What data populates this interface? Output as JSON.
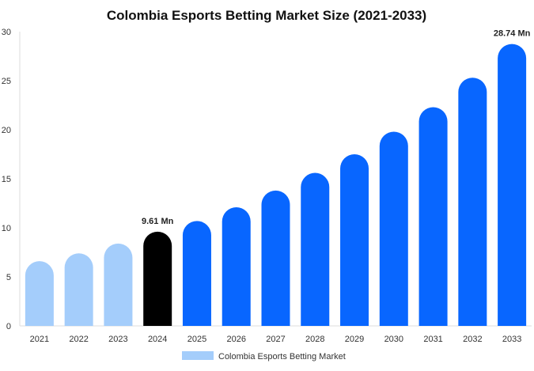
{
  "chart_data": {
    "type": "bar",
    "title": "Colombia Esports Betting Market Size (2021-2033)",
    "xlabel": "",
    "ylabel": "",
    "ylim": [
      0,
      30
    ],
    "yticks": [
      0,
      5,
      10,
      15,
      20,
      25,
      30
    ],
    "categories": [
      "2021",
      "2022",
      "2023",
      "2024",
      "2025",
      "2026",
      "2027",
      "2028",
      "2029",
      "2030",
      "2031",
      "2032",
      "2033"
    ],
    "series": [
      {
        "name": "Colombia Esports Betting Market",
        "values": [
          6.6,
          7.4,
          8.4,
          9.61,
          10.7,
          12.1,
          13.8,
          15.6,
          17.5,
          19.8,
          22.3,
          25.3,
          28.74
        ]
      }
    ],
    "bar_colors": [
      "#a4cdfb",
      "#a4cdfb",
      "#a4cdfb",
      "#000000",
      "#0866ff",
      "#0866ff",
      "#0866ff",
      "#0866ff",
      "#0866ff",
      "#0866ff",
      "#0866ff",
      "#0866ff",
      "#0866ff"
    ],
    "data_labels": [
      {
        "category": "2024",
        "text": "9.61 Mn"
      },
      {
        "category": "2033",
        "text": "28.74 Mn"
      }
    ],
    "legend": {
      "position": "bottom",
      "entries": [
        {
          "label": "Colombia Esports Betting Market",
          "color": "#a4cdfb"
        }
      ]
    },
    "grid": false,
    "axis_color": "#dddddd"
  }
}
